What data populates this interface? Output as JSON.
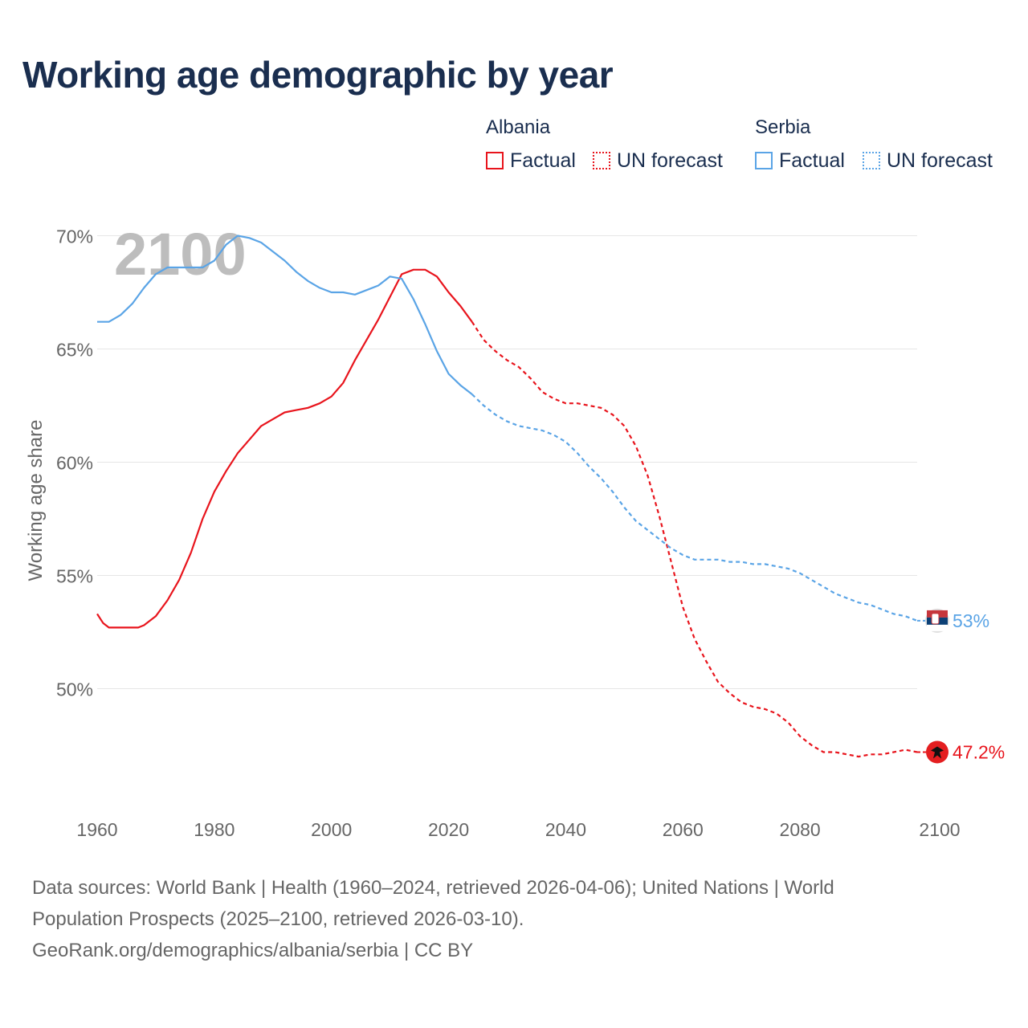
{
  "title": "Working age demographic by year",
  "legend": {
    "groups": [
      {
        "name": "Albania",
        "factual_label": "Factual",
        "forecast_label": "UN forecast",
        "color": "#e8141c"
      },
      {
        "name": "Serbia",
        "factual_label": "Factual",
        "forecast_label": "UN forecast",
        "color": "#5aa4e6"
      }
    ]
  },
  "year_watermark": "2100",
  "footer": {
    "line1": "Data sources: World Bank | Health (1960–2024, retrieved 2026-04-06); United Nations | World",
    "line2": "Population Prospects (2025–2100, retrieved 2026-03-10).",
    "line3": "GeoRank.org/demographics/albania/serbia | CC BY"
  },
  "chart_data": {
    "type": "line",
    "title": "Working age demographic by year",
    "xlabel": "",
    "ylabel": "Working age share",
    "xlim": [
      1960,
      2100
    ],
    "ylim": [
      45,
      71
    ],
    "xticks": [
      1960,
      1980,
      2000,
      2020,
      2040,
      2060,
      2080,
      2100
    ],
    "xtick_labels": [
      "1960",
      "1980",
      "2000",
      "2020",
      "2040",
      "2060",
      "2080",
      "2100"
    ],
    "yticks": [
      50,
      55,
      60,
      65,
      70
    ],
    "ytick_labels": [
      "50%",
      "55%",
      "60%",
      "65%",
      "70%"
    ],
    "grid": true,
    "factual_end": 2024,
    "series": [
      {
        "name": "Albania",
        "color": "#e8141c",
        "end_label": "47.2%",
        "points": [
          [
            1960,
            53.3
          ],
          [
            1961,
            52.9
          ],
          [
            1962,
            52.7
          ],
          [
            1964,
            52.7
          ],
          [
            1967,
            52.7
          ],
          [
            1968,
            52.8
          ],
          [
            1970,
            53.2
          ],
          [
            1972,
            53.9
          ],
          [
            1974,
            54.8
          ],
          [
            1976,
            56.0
          ],
          [
            1978,
            57.5
          ],
          [
            1980,
            58.7
          ],
          [
            1982,
            59.6
          ],
          [
            1984,
            60.4
          ],
          [
            1986,
            61.0
          ],
          [
            1988,
            61.6
          ],
          [
            1990,
            61.9
          ],
          [
            1992,
            62.2
          ],
          [
            1994,
            62.3
          ],
          [
            1996,
            62.4
          ],
          [
            1998,
            62.6
          ],
          [
            2000,
            62.9
          ],
          [
            2002,
            63.5
          ],
          [
            2004,
            64.5
          ],
          [
            2006,
            65.4
          ],
          [
            2008,
            66.3
          ],
          [
            2010,
            67.3
          ],
          [
            2012,
            68.3
          ],
          [
            2014,
            68.5
          ],
          [
            2016,
            68.5
          ],
          [
            2018,
            68.2
          ],
          [
            2020,
            67.5
          ],
          [
            2022,
            66.9
          ],
          [
            2024,
            66.2
          ],
          [
            2026,
            65.4
          ],
          [
            2028,
            64.9
          ],
          [
            2030,
            64.5
          ],
          [
            2032,
            64.2
          ],
          [
            2034,
            63.7
          ],
          [
            2036,
            63.1
          ],
          [
            2038,
            62.8
          ],
          [
            2040,
            62.6
          ],
          [
            2042,
            62.6
          ],
          [
            2044,
            62.5
          ],
          [
            2046,
            62.4
          ],
          [
            2048,
            62.1
          ],
          [
            2050,
            61.6
          ],
          [
            2052,
            60.7
          ],
          [
            2054,
            59.4
          ],
          [
            2056,
            57.6
          ],
          [
            2058,
            55.6
          ],
          [
            2060,
            53.6
          ],
          [
            2062,
            52.2
          ],
          [
            2064,
            51.2
          ],
          [
            2066,
            50.3
          ],
          [
            2068,
            49.8
          ],
          [
            2070,
            49.4
          ],
          [
            2072,
            49.2
          ],
          [
            2074,
            49.1
          ],
          [
            2076,
            48.9
          ],
          [
            2078,
            48.5
          ],
          [
            2080,
            47.9
          ],
          [
            2082,
            47.5
          ],
          [
            2084,
            47.2
          ],
          [
            2086,
            47.2
          ],
          [
            2088,
            47.1
          ],
          [
            2090,
            47.0
          ],
          [
            2092,
            47.1
          ],
          [
            2094,
            47.1
          ],
          [
            2096,
            47.2
          ],
          [
            2098,
            47.3
          ],
          [
            2100,
            47.2
          ]
        ]
      },
      {
        "name": "Serbia",
        "color": "#5aa4e6",
        "end_label": "53%",
        "points": [
          [
            1960,
            66.2
          ],
          [
            1962,
            66.2
          ],
          [
            1964,
            66.5
          ],
          [
            1966,
            67.0
          ],
          [
            1968,
            67.7
          ],
          [
            1970,
            68.3
          ],
          [
            1972,
            68.6
          ],
          [
            1974,
            68.6
          ],
          [
            1976,
            68.6
          ],
          [
            1978,
            68.6
          ],
          [
            1980,
            68.9
          ],
          [
            1982,
            69.6
          ],
          [
            1984,
            70.0
          ],
          [
            1986,
            69.9
          ],
          [
            1988,
            69.7
          ],
          [
            1990,
            69.3
          ],
          [
            1992,
            68.9
          ],
          [
            1994,
            68.4
          ],
          [
            1996,
            68.0
          ],
          [
            1998,
            67.7
          ],
          [
            2000,
            67.5
          ],
          [
            2002,
            67.5
          ],
          [
            2004,
            67.4
          ],
          [
            2006,
            67.6
          ],
          [
            2008,
            67.8
          ],
          [
            2010,
            68.2
          ],
          [
            2012,
            68.1
          ],
          [
            2014,
            67.2
          ],
          [
            2016,
            66.1
          ],
          [
            2018,
            64.9
          ],
          [
            2020,
            63.9
          ],
          [
            2022,
            63.4
          ],
          [
            2024,
            63.0
          ],
          [
            2026,
            62.5
          ],
          [
            2028,
            62.1
          ],
          [
            2030,
            61.8
          ],
          [
            2032,
            61.6
          ],
          [
            2034,
            61.5
          ],
          [
            2036,
            61.4
          ],
          [
            2038,
            61.2
          ],
          [
            2040,
            60.9
          ],
          [
            2042,
            60.4
          ],
          [
            2044,
            59.8
          ],
          [
            2046,
            59.3
          ],
          [
            2048,
            58.7
          ],
          [
            2050,
            58.0
          ],
          [
            2052,
            57.4
          ],
          [
            2054,
            57.0
          ],
          [
            2056,
            56.6
          ],
          [
            2058,
            56.2
          ],
          [
            2060,
            55.9
          ],
          [
            2062,
            55.7
          ],
          [
            2064,
            55.7
          ],
          [
            2066,
            55.7
          ],
          [
            2068,
            55.6
          ],
          [
            2070,
            55.6
          ],
          [
            2072,
            55.5
          ],
          [
            2074,
            55.5
          ],
          [
            2076,
            55.4
          ],
          [
            2078,
            55.3
          ],
          [
            2080,
            55.1
          ],
          [
            2082,
            54.8
          ],
          [
            2084,
            54.5
          ],
          [
            2086,
            54.2
          ],
          [
            2088,
            54.0
          ],
          [
            2090,
            53.8
          ],
          [
            2092,
            53.7
          ],
          [
            2094,
            53.5
          ],
          [
            2096,
            53.3
          ],
          [
            2098,
            53.2
          ],
          [
            2100,
            53.0
          ]
        ]
      }
    ]
  }
}
